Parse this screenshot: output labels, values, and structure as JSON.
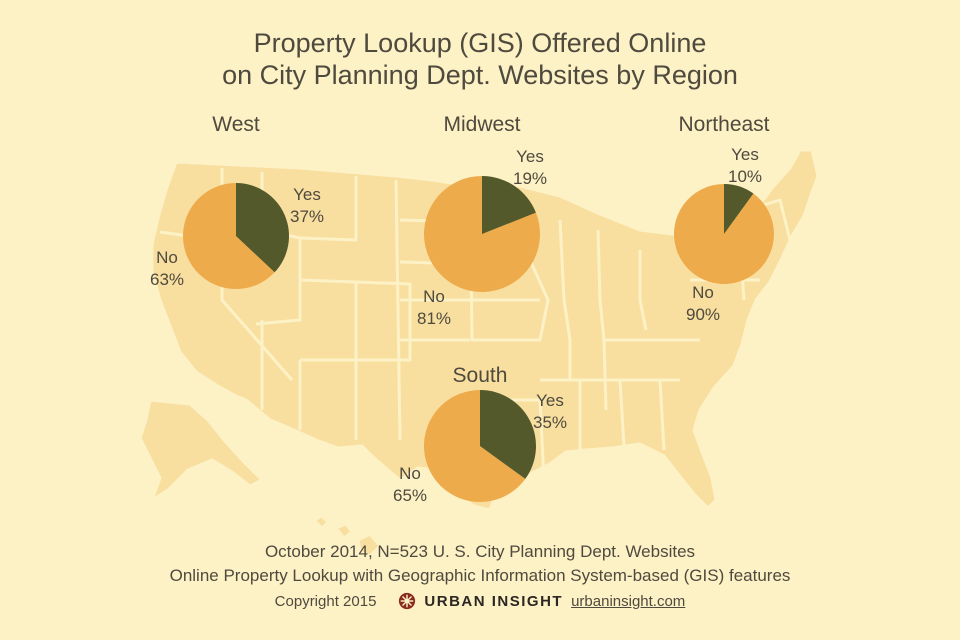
{
  "title_lines": [
    "Property Lookup (GIS) Offered Online",
    "on City Planning Dept. Websites by Region"
  ],
  "footer": {
    "line1": "October 2014, N=523 U. S. City Planning Dept. Websites",
    "line2": "Online Property Lookup with Geographic Information System-based (GIS) features",
    "copyright": "Copyright 2015",
    "brand": "URBAN INSIGHT",
    "url": "urbaninsight.com"
  },
  "colors": {
    "background": "#fdf1c6",
    "map_fill": "#f8dfa0",
    "map_border": "#fdf1c6",
    "yes": "#53592a",
    "no": "#eeab4b",
    "text": "#4f4a3e",
    "logo": "#8a2a1f"
  },
  "chart_data": [
    {
      "type": "pie",
      "title": "West",
      "categories": [
        "Yes",
        "No"
      ],
      "values": [
        37,
        63
      ],
      "value_labels": [
        "37%",
        "63%"
      ]
    },
    {
      "type": "pie",
      "title": "Midwest",
      "categories": [
        "Yes",
        "No"
      ],
      "values": [
        19,
        81
      ],
      "value_labels": [
        "19%",
        "81%"
      ]
    },
    {
      "type": "pie",
      "title": "Northeast",
      "categories": [
        "Yes",
        "No"
      ],
      "values": [
        10,
        90
      ],
      "value_labels": [
        "10%",
        "90%"
      ]
    },
    {
      "type": "pie",
      "title": "South",
      "categories": [
        "Yes",
        "No"
      ],
      "values": [
        35,
        65
      ],
      "value_labels": [
        "35%",
        "65%"
      ]
    }
  ]
}
